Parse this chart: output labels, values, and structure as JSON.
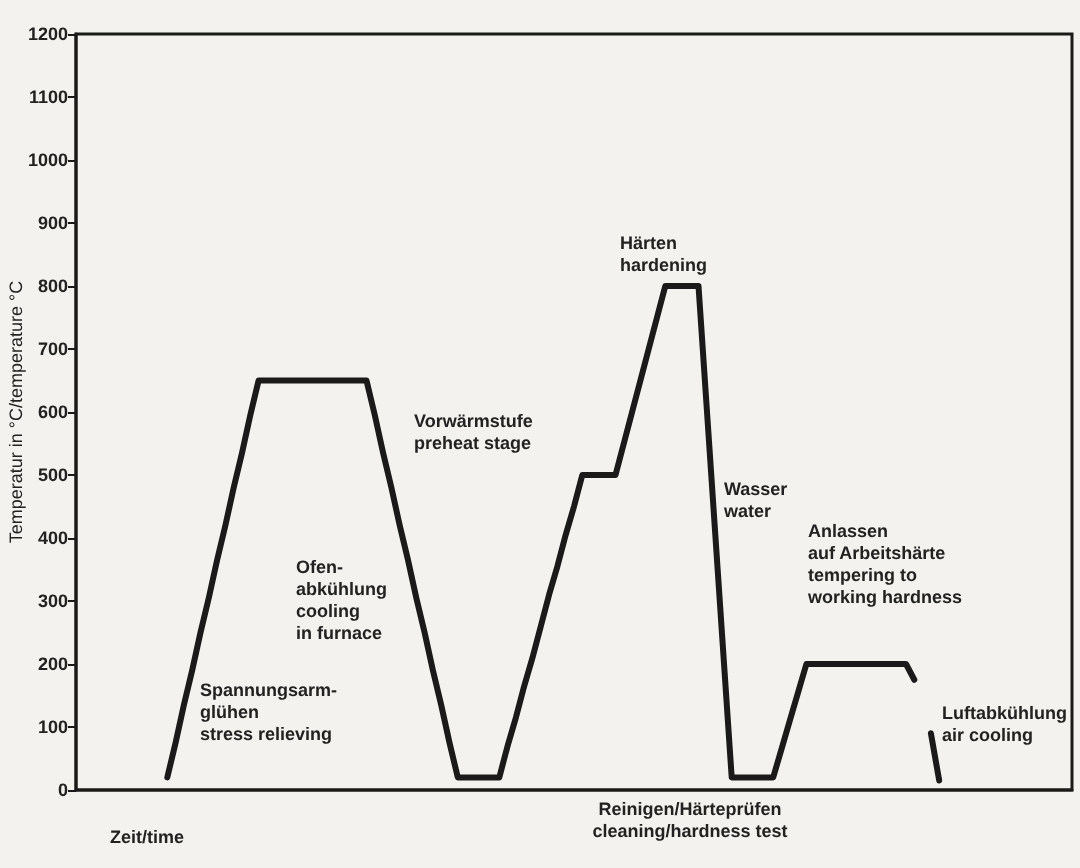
{
  "chart_data": {
    "type": "line",
    "xlabel": "Zeit/time",
    "ylabel": "Temperatur in °C/temperature °C",
    "categories": [
      null,
      null,
      null,
      null,
      null,
      null,
      null,
      null,
      null,
      null,
      null,
      null,
      null,
      null,
      null,
      null,
      null,
      null,
      null,
      null,
      null,
      null,
      null,
      null,
      null,
      null,
      null,
      null,
      null,
      null,
      null,
      null,
      null,
      null,
      null,
      null,
      null,
      null,
      null,
      null,
      null,
      null,
      null,
      null,
      null,
      null,
      null,
      null,
      null,
      null,
      null,
      null,
      null,
      null,
      null,
      null,
      null,
      null,
      null,
      null,
      null,
      null,
      null,
      null,
      null,
      null,
      null,
      null,
      null,
      null,
      null,
      null,
      null,
      null,
      null,
      null,
      null,
      null,
      null,
      null,
      null,
      null,
      null,
      null,
      null,
      null,
      null,
      null,
      null,
      null,
      null,
      null,
      null,
      null,
      null,
      null,
      null,
      null,
      null,
      null,
      null,
      null,
      null,
      null,
      null,
      null,
      null,
      null,
      null,
      null,
      null,
      null,
      null,
      null,
      null,
      null,
      null,
      null,
      null,
      null,
      null
    ],
    "series": [
      {
        "color": "#1a1a1a",
        "values": [
          null,
          null,
          null,
          null,
          null,
          null,
          null,
          null,
          null,
          null,
          null,
          20,
          75,
          135,
          190,
          250,
          305,
          365,
          420,
          480,
          535,
          595,
          650,
          650,
          650,
          650,
          650,
          650,
          650,
          650,
          650,
          650,
          650,
          650,
          650,
          650,
          595,
          535,
          480,
          420,
          365,
          305,
          250,
          190,
          135,
          75,
          20,
          20,
          20,
          20,
          20,
          20,
          70,
          115,
          165,
          210,
          260,
          310,
          355,
          405,
          450,
          500,
          500,
          500,
          500,
          500,
          550,
          600,
          650,
          700,
          750,
          800,
          800,
          800,
          800,
          800,
          605,
          410,
          215,
          20,
          20,
          20,
          20,
          20,
          20,
          65,
          110,
          155,
          200,
          200,
          200,
          200,
          200,
          200,
          200,
          200,
          200,
          200,
          200,
          200,
          200,
          175,
          null,
          null,
          null,
          null,
          null,
          null,
          null,
          null,
          null,
          null,
          null,
          null,
          null,
          null,
          null,
          null,
          null,
          null,
          null
        ]
      },
      {
        "color": "#1a1a1a",
        "values": [
          null,
          null,
          null,
          null,
          null,
          null,
          null,
          null,
          null,
          null,
          null,
          null,
          null,
          null,
          null,
          null,
          null,
          null,
          null,
          null,
          null,
          null,
          null,
          null,
          null,
          null,
          null,
          null,
          null,
          null,
          null,
          null,
          null,
          null,
          null,
          null,
          null,
          null,
          null,
          null,
          null,
          null,
          null,
          null,
          null,
          null,
          null,
          null,
          null,
          null,
          null,
          null,
          null,
          null,
          null,
          null,
          null,
          null,
          null,
          null,
          null,
          null,
          null,
          null,
          null,
          null,
          null,
          null,
          null,
          null,
          null,
          null,
          null,
          null,
          null,
          null,
          null,
          null,
          null,
          null,
          null,
          null,
          null,
          null,
          null,
          null,
          null,
          null,
          null,
          null,
          null,
          null,
          null,
          null,
          null,
          null,
          null,
          null,
          null,
          null,
          null,
          null,
          null,
          90,
          15,
          null,
          null,
          null,
          null,
          null,
          null,
          null,
          null,
          null,
          null,
          null,
          null,
          null,
          null,
          null,
          null
        ]
      }
    ],
    "ylim": [
      0,
      1200
    ],
    "yticks": [
      0,
      100,
      200,
      300,
      400,
      500,
      600,
      700,
      800,
      900,
      1000,
      1100,
      1200
    ],
    "tick_labels": "y",
    "grid": false,
    "line_style": "solid",
    "annotations": [
      "Spannungsarm-\nglühen\nstress relieving",
      "Ofen-\nabkühlung\ncooling\nin furnace",
      "Vorwärmstufe\npreheat stage",
      "Härten\nhardening",
      "Wasser\nwater",
      "Anlassen\nauf Arbeitshärte\ntempering to\nworking hardness",
      "Luftabkühlung\nair cooling",
      "Reinigen/Härteprüfen\ncleaning/hardness test"
    ]
  }
}
